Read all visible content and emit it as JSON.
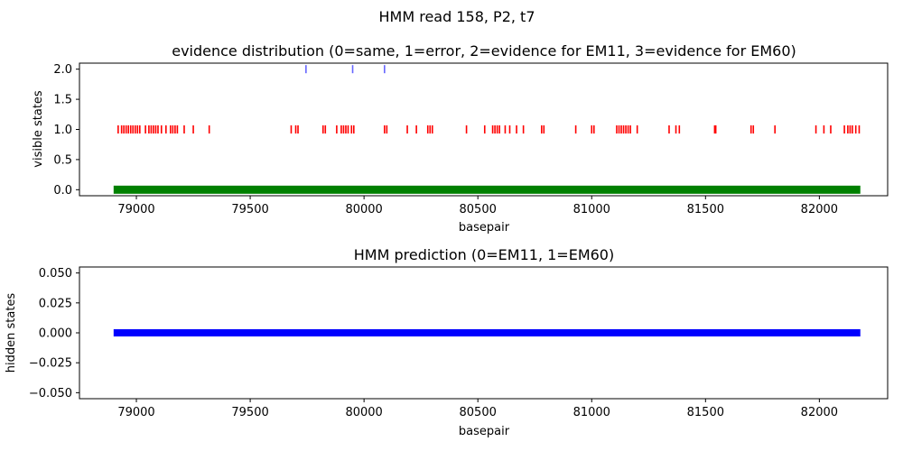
{
  "figure": {
    "suptitle": "HMM read 158, P2, t7"
  },
  "chart_data": [
    {
      "type": "scatter",
      "title": "evidence distribution (0=same, 1=error, 2=evidence for EM11, 3=evidence for EM60)",
      "xlabel": "basepair",
      "ylabel": "visible states",
      "xlim": [
        78750,
        82300
      ],
      "ylim": [
        -0.1,
        2.1
      ],
      "xticks": [
        "79000",
        "79500",
        "80000",
        "80500",
        "81000",
        "81500",
        "82000"
      ],
      "yticks": [
        "0.0",
        "0.5",
        "1.0",
        "1.5",
        "2.0"
      ],
      "grid": false,
      "series": [
        {
          "color": "#008000",
          "y": 0,
          "x_range": [
            78900,
            82180
          ],
          "x": []
        },
        {
          "color": "#ff0000",
          "y": 1,
          "x": [
            78920,
            78935,
            78945,
            78955,
            78965,
            78975,
            78985,
            78995,
            79005,
            79015,
            79040,
            79055,
            79065,
            79075,
            79085,
            79095,
            79110,
            79130,
            79150,
            79160,
            79170,
            79180,
            79210,
            79250,
            79320,
            79680,
            79700,
            79710,
            79820,
            79830,
            79880,
            79900,
            79910,
            79920,
            79930,
            79945,
            79955,
            80090,
            80100,
            80190,
            80230,
            80280,
            80290,
            80300,
            80450,
            80530,
            80565,
            80575,
            80585,
            80595,
            80620,
            80640,
            80670,
            80700,
            80780,
            80790,
            80930,
            81000,
            81010,
            81110,
            81120,
            81130,
            81140,
            81150,
            81160,
            81170,
            81200,
            81340,
            81370,
            81385,
            81540,
            81545,
            81700,
            81710,
            81805,
            81985,
            82020,
            82050,
            82110,
            82125,
            82135,
            82145,
            82160,
            82175
          ]
        },
        {
          "color": "#6666ff",
          "y": 2,
          "x": [
            79745,
            79950,
            80090
          ]
        }
      ]
    },
    {
      "type": "line",
      "title": "HMM prediction (0=EM11, 1=EM60)",
      "xlabel": "basepair",
      "ylabel": "hidden states",
      "xlim": [
        78750,
        82300
      ],
      "ylim": [
        -0.055,
        0.055
      ],
      "xticks": [
        "79000",
        "79500",
        "80000",
        "80500",
        "81000",
        "81500",
        "82000"
      ],
      "yticks": [
        "0.050",
        "0.025",
        "0.000",
        "−0.025",
        "−0.050"
      ],
      "grid": false,
      "series": [
        {
          "color": "#0000ff",
          "x": [
            78900,
            82180
          ],
          "y": [
            0,
            0
          ]
        }
      ]
    }
  ]
}
